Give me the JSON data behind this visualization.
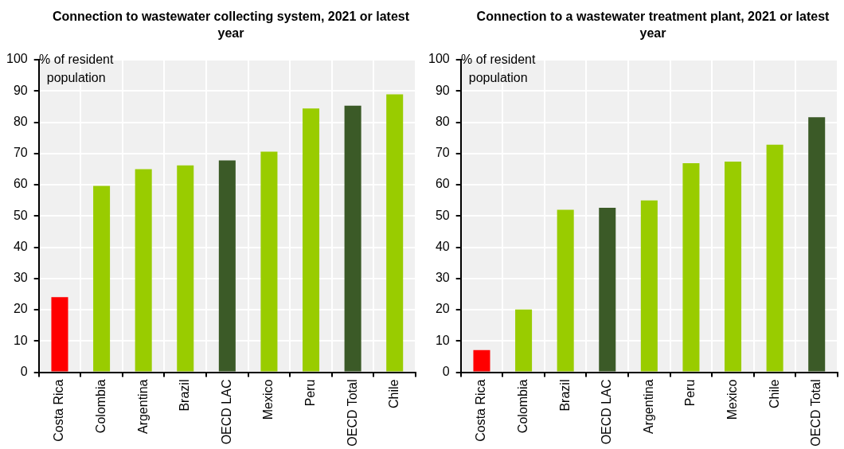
{
  "chart_data": [
    {
      "type": "bar",
      "title": "Connection to wastewater collecting system, 2021 or latest year",
      "ylabel": "% of resident population",
      "categories": [
        "Costa Rica",
        "Colombia",
        "Argentina",
        "Brazil",
        "OECD LAC",
        "Mexico",
        "Peru",
        "OECD Total",
        "Chile"
      ],
      "values": [
        24.0,
        59.6,
        65.0,
        66.2,
        67.8,
        70.6,
        84.4,
        85.3,
        88.9
      ],
      "colors": [
        "#ff0000",
        "#99cc00",
        "#99cc00",
        "#99cc00",
        "#3b5a27",
        "#99cc00",
        "#99cc00",
        "#3b5a27",
        "#99cc00"
      ],
      "ylim": [
        0,
        100
      ],
      "yticks": [
        0,
        10,
        20,
        30,
        40,
        50,
        60,
        70,
        80,
        90,
        100
      ],
      "grid": true
    },
    {
      "type": "bar",
      "title": "Connection to a wastewater treatment plant, 2021 or latest year",
      "ylabel": "% of resident population",
      "categories": [
        "Costa Rica",
        "Colombia",
        "Brazil",
        "OECD LAC",
        "Argentina",
        "Peru",
        "Mexico",
        "Chile",
        "OECD Total"
      ],
      "values": [
        7.1,
        20.1,
        52.0,
        52.6,
        55.0,
        66.9,
        67.4,
        72.8,
        81.6
      ],
      "colors": [
        "#ff0000",
        "#99cc00",
        "#99cc00",
        "#3b5a27",
        "#99cc00",
        "#99cc00",
        "#99cc00",
        "#99cc00",
        "#3b5a27"
      ],
      "ylim": [
        0,
        100
      ],
      "yticks": [
        0,
        10,
        20,
        30,
        40,
        50,
        60,
        70,
        80,
        90,
        100
      ],
      "grid": true
    }
  ]
}
